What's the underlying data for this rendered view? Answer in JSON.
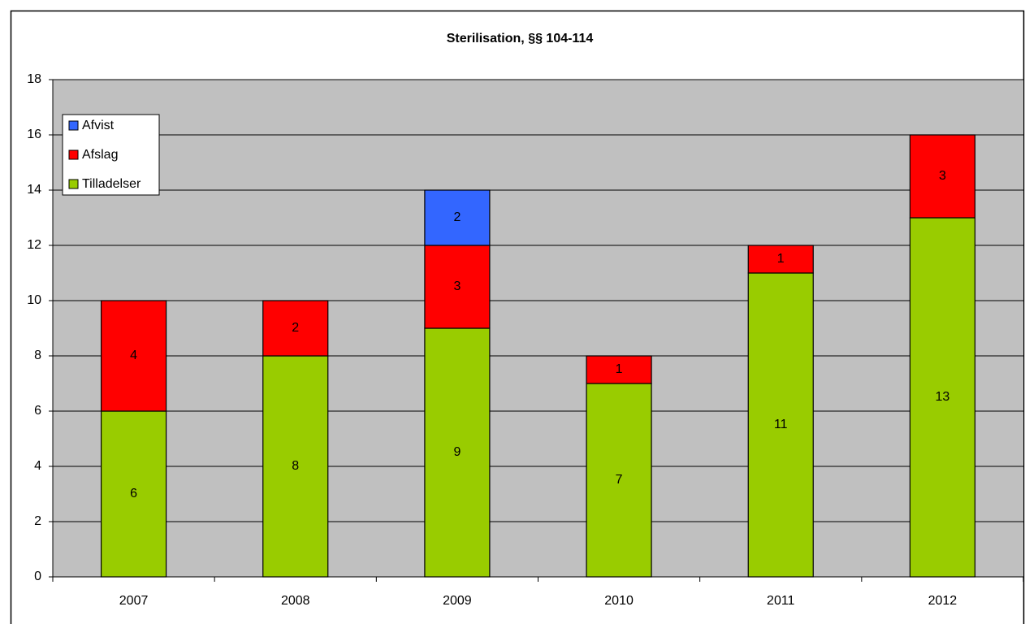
{
  "chart_data": {
    "type": "bar",
    "stacked": true,
    "title": "Sterilisation, §§ 104-114",
    "categories": [
      "2007",
      "2008",
      "2009",
      "2010",
      "2011",
      "2012"
    ],
    "series": [
      {
        "name": "Tilladelser",
        "color": "#99cc00",
        "values": [
          6,
          8,
          9,
          7,
          11,
          13
        ]
      },
      {
        "name": "Afslag",
        "color": "#ff0000",
        "values": [
          4,
          2,
          3,
          1,
          1,
          3
        ]
      },
      {
        "name": "Afvist",
        "color": "#3366ff",
        "values": [
          null,
          null,
          2,
          null,
          null,
          null
        ]
      }
    ],
    "ylim": [
      0,
      18
    ],
    "yticks": [
      0,
      2,
      4,
      6,
      8,
      10,
      12,
      14,
      16,
      18
    ],
    "grid": true,
    "legend": "upper left",
    "plot_background": "#c0c0c0"
  }
}
